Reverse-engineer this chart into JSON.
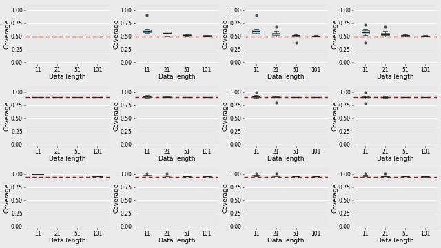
{
  "rows": 3,
  "cols": 4,
  "x_tick_labels": [
    "11",
    "21",
    "51",
    "101"
  ],
  "xlabel": "Data length",
  "ylabel": "Coverage",
  "ylim": [
    -0.03,
    1.12
  ],
  "yticks": [
    0.0,
    0.25,
    0.5,
    0.75,
    1.0
  ],
  "ytick_labels": [
    "0.00",
    "0.25",
    "0.50",
    "0.75",
    "1.00"
  ],
  "hline_values": [
    0.5,
    0.9,
    0.95
  ],
  "hline_color": "#CC0000",
  "box_facecolor": "#ADD8E6",
  "box_edgecolor": "#444444",
  "flier_color": "#333333",
  "background_color": "#EBEBEB",
  "panel_background": "#E8E8E8",
  "grid_color": "#FFFFFF",
  "panels": [
    [
      {
        "col": 0,
        "medians": [
          0.5,
          0.5,
          0.5,
          0.5
        ],
        "q1": [
          0.5,
          0.5,
          0.5,
          0.5
        ],
        "q3": [
          0.5,
          0.5,
          0.5,
          0.5
        ],
        "whislo": [
          0.5,
          0.5,
          0.5,
          0.5
        ],
        "whishi": [
          0.5,
          0.5,
          0.5,
          0.5
        ],
        "fliers": [
          [],
          [],
          [],
          []
        ],
        "show_box": [
          false,
          false,
          false,
          false
        ]
      },
      {
        "col": 1,
        "medians": [
          0.6,
          0.565,
          0.525,
          0.51
        ],
        "q1": [
          0.575,
          0.545,
          0.515,
          0.505
        ],
        "q3": [
          0.625,
          0.58,
          0.535,
          0.515
        ],
        "whislo": [
          0.56,
          0.51,
          0.51,
          0.5
        ],
        "whishi": [
          0.64,
          0.67,
          0.54,
          0.52
        ],
        "fliers": [
          [
            0.9
          ],
          [],
          [],
          []
        ],
        "show_box": [
          true,
          true,
          true,
          true
        ]
      },
      {
        "col": 2,
        "medians": [
          0.595,
          0.545,
          0.515,
          0.505
        ],
        "q1": [
          0.565,
          0.525,
          0.508,
          0.5
        ],
        "q3": [
          0.625,
          0.565,
          0.525,
          0.51
        ],
        "whislo": [
          0.545,
          0.5,
          0.5,
          0.495
        ],
        "whishi": [
          0.645,
          0.595,
          0.535,
          0.515
        ],
        "fliers": [
          [
            0.9
          ],
          [
            0.68
          ],
          [
            0.38
          ],
          []
        ],
        "show_box": [
          true,
          true,
          true,
          true
        ]
      },
      {
        "col": 3,
        "medians": [
          0.575,
          0.54,
          0.515,
          0.505
        ],
        "q1": [
          0.55,
          0.52,
          0.508,
          0.5
        ],
        "q3": [
          0.615,
          0.56,
          0.525,
          0.51
        ],
        "whislo": [
          0.515,
          0.5,
          0.5,
          0.495
        ],
        "whishi": [
          0.64,
          0.595,
          0.532,
          0.515
        ],
        "fliers": [
          [
            0.38,
            0.72
          ],
          [
            0.68
          ],
          [],
          []
        ],
        "show_box": [
          true,
          true,
          true,
          true
        ]
      }
    ],
    [
      {
        "col": 0,
        "medians": [
          0.9,
          0.9,
          0.9,
          0.9
        ],
        "q1": [
          0.9,
          0.9,
          0.9,
          0.9
        ],
        "q3": [
          0.9,
          0.9,
          0.9,
          0.9
        ],
        "whislo": [
          0.9,
          0.9,
          0.9,
          0.9
        ],
        "whishi": [
          0.9,
          0.9,
          0.9,
          0.9
        ],
        "fliers": [
          [],
          [],
          [],
          []
        ],
        "show_box": [
          false,
          false,
          false,
          false
        ]
      },
      {
        "col": 1,
        "medians": [
          0.92,
          0.91,
          0.905,
          0.902
        ],
        "q1": [
          0.905,
          0.905,
          0.902,
          0.9
        ],
        "q3": [
          0.935,
          0.918,
          0.908,
          0.904
        ],
        "whislo": [
          0.895,
          0.9,
          0.9,
          0.9
        ],
        "whishi": [
          0.945,
          0.922,
          0.91,
          0.906
        ],
        "fliers": [
          [],
          [],
          [],
          []
        ],
        "show_box": [
          true,
          true,
          true,
          true
        ]
      },
      {
        "col": 2,
        "medians": [
          0.915,
          0.908,
          0.903,
          0.901
        ],
        "q1": [
          0.9,
          0.903,
          0.901,
          0.9
        ],
        "q3": [
          0.928,
          0.912,
          0.905,
          0.903
        ],
        "whislo": [
          0.89,
          0.898,
          0.9,
          0.9
        ],
        "whishi": [
          0.938,
          0.916,
          0.907,
          0.904
        ],
        "fliers": [
          [
            1.0
          ],
          [
            0.8
          ],
          [],
          []
        ],
        "show_box": [
          true,
          true,
          true,
          true
        ]
      },
      {
        "col": 3,
        "medians": [
          0.91,
          0.905,
          0.902,
          0.901
        ],
        "q1": [
          0.898,
          0.902,
          0.901,
          0.9
        ],
        "q3": [
          0.922,
          0.91,
          0.904,
          0.902
        ],
        "whislo": [
          0.882,
          0.897,
          0.9,
          0.9
        ],
        "whishi": [
          0.932,
          0.914,
          0.906,
          0.903
        ],
        "fliers": [
          [
            0.78,
            1.0
          ],
          [],
          [],
          []
        ],
        "show_box": [
          true,
          true,
          true,
          true
        ]
      }
    ],
    [
      {
        "col": 0,
        "medians": [
          1.0,
          0.975,
          0.965,
          0.958
        ],
        "q1": [
          1.0,
          0.97,
          0.962,
          0.956
        ],
        "q3": [
          1.0,
          0.978,
          0.967,
          0.96
        ],
        "whislo": [
          1.0,
          0.965,
          0.96,
          0.954
        ],
        "whishi": [
          1.0,
          0.98,
          0.97,
          0.962
        ],
        "fliers": [
          [],
          [],
          [],
          []
        ],
        "show_box": [
          false,
          false,
          false,
          false
        ]
      },
      {
        "col": 1,
        "medians": [
          0.975,
          0.968,
          0.96,
          0.956
        ],
        "q1": [
          0.97,
          0.965,
          0.958,
          0.954
        ],
        "q3": [
          0.98,
          0.971,
          0.963,
          0.958
        ],
        "whislo": [
          0.965,
          0.962,
          0.956,
          0.952
        ],
        "whishi": [
          0.985,
          0.975,
          0.965,
          0.96
        ],
        "fliers": [
          [
            1.005
          ],
          [
            1.005
          ],
          [],
          []
        ],
        "show_box": [
          true,
          true,
          true,
          true
        ]
      },
      {
        "col": 2,
        "medians": [
          0.972,
          0.965,
          0.96,
          0.956
        ],
        "q1": [
          0.967,
          0.962,
          0.958,
          0.954
        ],
        "q3": [
          0.978,
          0.968,
          0.962,
          0.958
        ],
        "whislo": [
          0.962,
          0.96,
          0.955,
          0.952
        ],
        "whishi": [
          0.983,
          0.972,
          0.964,
          0.96
        ],
        "fliers": [
          [
            1.005
          ],
          [
            1.005
          ],
          [],
          []
        ],
        "show_box": [
          true,
          true,
          true,
          true
        ]
      },
      {
        "col": 3,
        "medians": [
          0.97,
          0.963,
          0.958,
          0.954
        ],
        "q1": [
          0.965,
          0.96,
          0.956,
          0.952
        ],
        "q3": [
          0.975,
          0.967,
          0.961,
          0.957
        ],
        "whislo": [
          0.96,
          0.957,
          0.954,
          0.95
        ],
        "whishi": [
          0.98,
          0.971,
          0.963,
          0.959
        ],
        "fliers": [
          [
            1.005
          ],
          [
            1.005
          ],
          [],
          []
        ],
        "show_box": [
          true,
          true,
          true,
          true
        ]
      }
    ]
  ]
}
